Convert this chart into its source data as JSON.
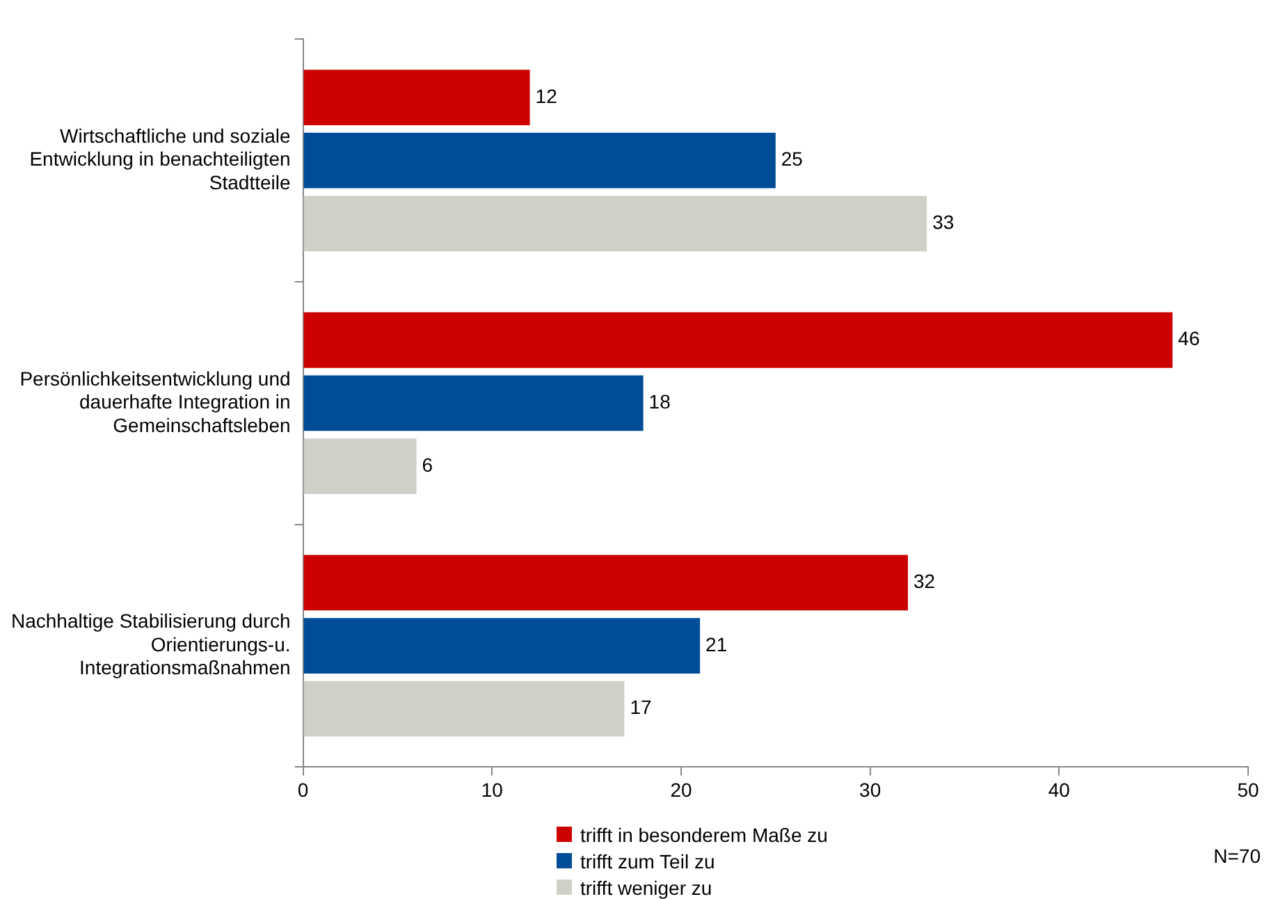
{
  "chart_data": {
    "type": "bar",
    "orientation": "horizontal",
    "categories": [
      "Wirtschaftliche und soziale Entwicklung in benachteiligten Stadtteile",
      "Persönlichkeitsentwicklung und dauerhafte Integration in Gemeinschaftsleben",
      "Nachhaltige Stabilisierung durch Orientierungs-u. Integrationsmaßnahmen"
    ],
    "series": [
      {
        "name": "trifft in besonderem Maße zu",
        "color": "#cc0000",
        "values": [
          12,
          46,
          32
        ]
      },
      {
        "name": "trifft zum Teil zu",
        "color": "#004c97",
        "values": [
          25,
          18,
          21
        ]
      },
      {
        "name": "trifft weniger zu",
        "color": "#d0cfc8",
        "values": [
          33,
          6,
          17
        ]
      }
    ],
    "xlim": [
      0,
      50
    ],
    "xticks": [
      0,
      10,
      20,
      30,
      40,
      50
    ],
    "grid": false,
    "legend": "bottom",
    "data_labels": true,
    "annotations": [
      "N=70"
    ]
  }
}
